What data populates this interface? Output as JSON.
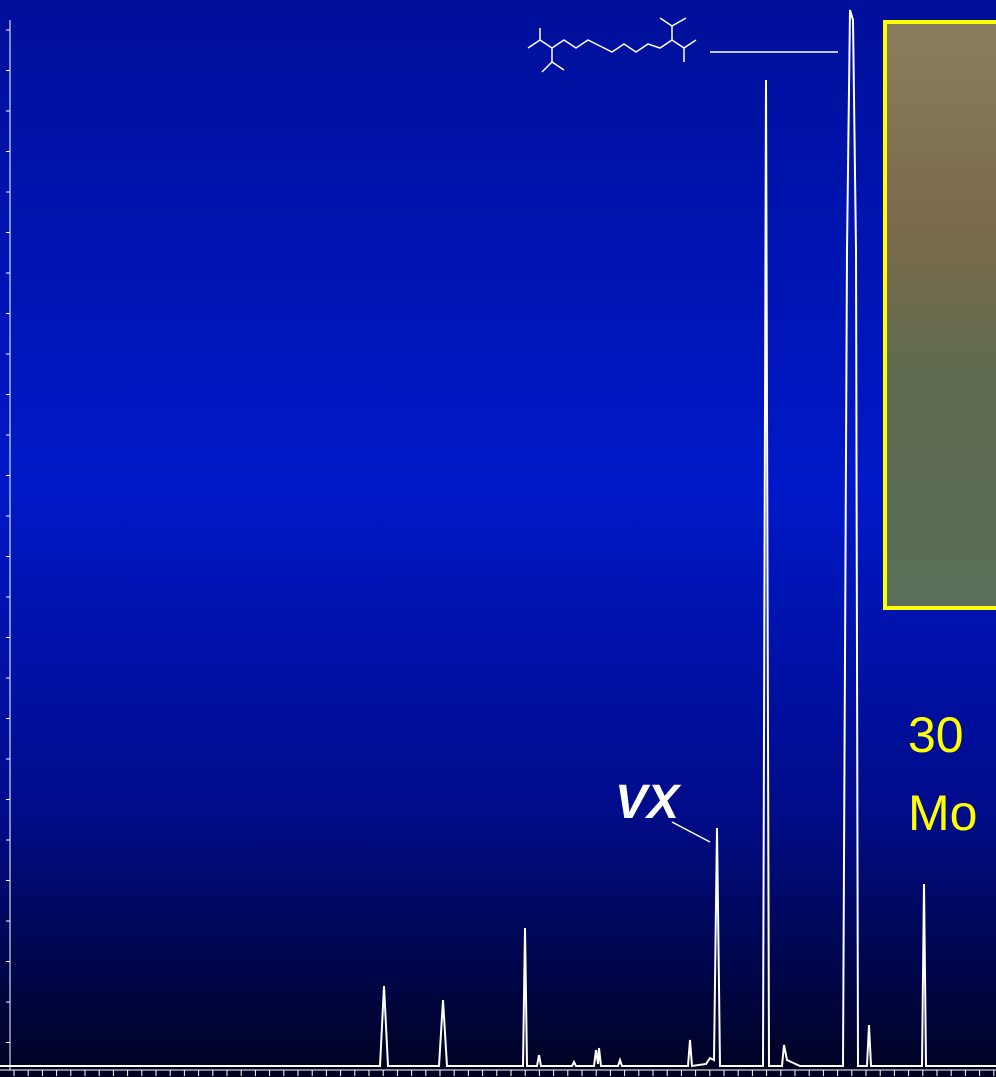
{
  "annotations": {
    "peak_label": "VX"
  },
  "caption": {
    "lines": [
      "30",
      "Mo"
    ]
  }
}
